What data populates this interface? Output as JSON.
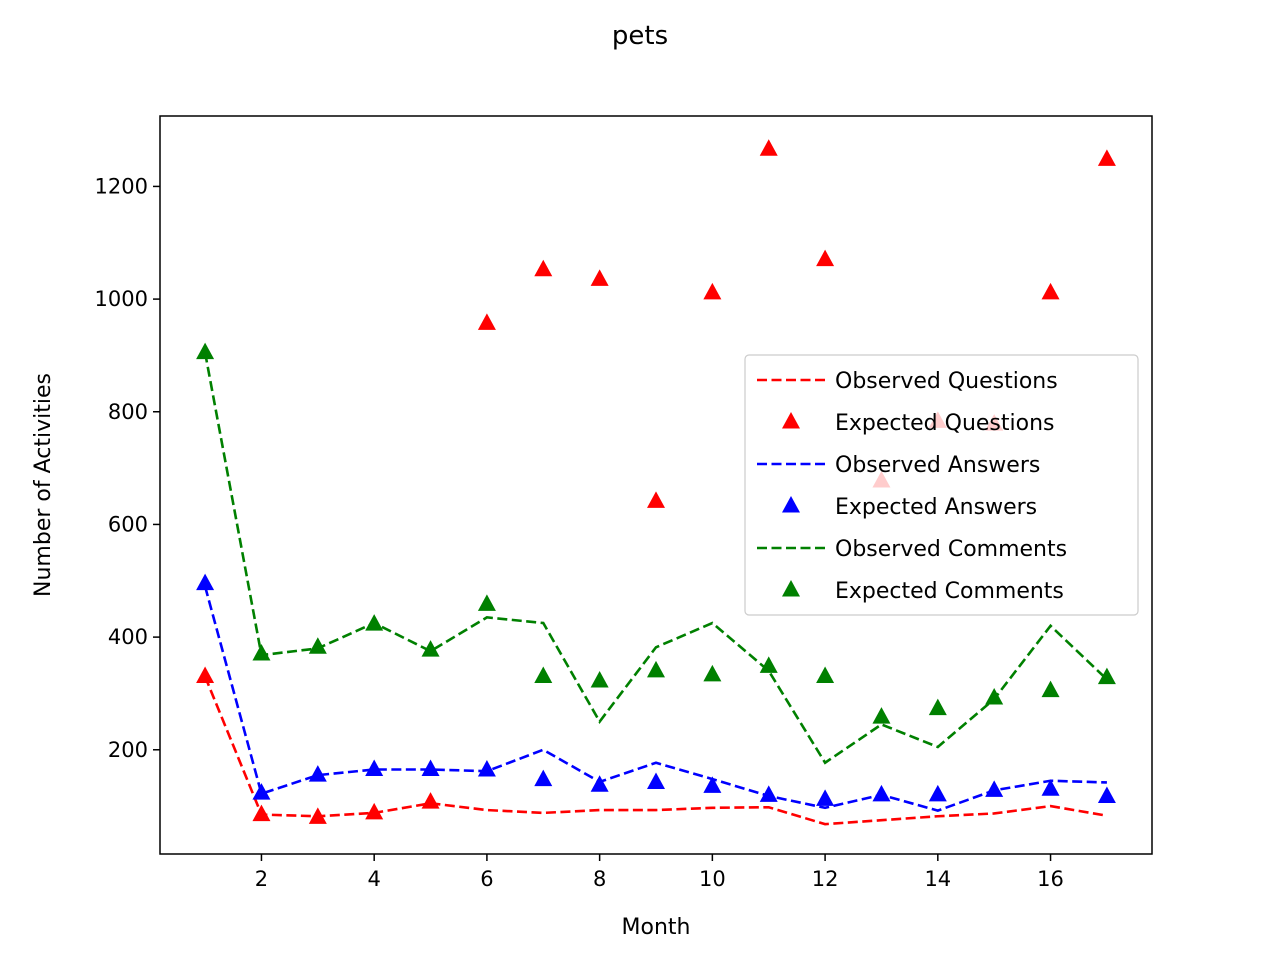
{
  "chart_data": {
    "type": "line",
    "title": "pets",
    "xlabel": "Month",
    "ylabel": "Number of Activities",
    "xlim": [
      0.2,
      17.8
    ],
    "ylim": [
      15,
      1325
    ],
    "xticks": [
      2,
      4,
      6,
      8,
      10,
      12,
      14,
      16
    ],
    "yticks": [
      200,
      400,
      600,
      800,
      1000,
      1200
    ],
    "grid": false,
    "legend_position": "center-right",
    "x": [
      1,
      2,
      3,
      4,
      5,
      6,
      7,
      8,
      9,
      10,
      11,
      12,
      13,
      14,
      15,
      16,
      17
    ],
    "series": [
      {
        "name": "Observed Questions",
        "style": "dashed-line",
        "color": "#ff0000",
        "values": [
          330,
          85,
          82,
          88,
          105,
          93,
          88,
          93,
          93,
          97,
          98,
          68,
          75,
          82,
          87,
          100,
          83
        ]
      },
      {
        "name": "Expected Questions",
        "style": "triangle-marker",
        "color": "#ff0000",
        "values": [
          330,
          85,
          80,
          88,
          107,
          957,
          1052,
          1035,
          641,
          1011,
          1266,
          1070,
          677,
          783,
          778,
          1011,
          1248
        ]
      },
      {
        "name": "Observed Answers",
        "style": "dashed-line",
        "color": "#0000ff",
        "values": [
          490,
          122,
          155,
          165,
          165,
          162,
          200,
          143,
          177,
          148,
          118,
          97,
          120,
          92,
          128,
          145,
          142
        ]
      },
      {
        "name": "Expected Answers",
        "style": "triangle-marker",
        "color": "#0000ff",
        "values": [
          495,
          123,
          155,
          165,
          165,
          164,
          147,
          137,
          142,
          135,
          119,
          112,
          120,
          120,
          128,
          130,
          117
        ]
      },
      {
        "name": "Observed Comments",
        "style": "dashed-line",
        "color": "#008000",
        "values": [
          905,
          368,
          380,
          425,
          375,
          435,
          425,
          250,
          382,
          425,
          340,
          177,
          245,
          205,
          290,
          420,
          325
        ]
      },
      {
        "name": "Expected Comments",
        "style": "triangle-marker",
        "color": "#008000",
        "values": [
          905,
          370,
          382,
          423,
          377,
          458,
          330,
          322,
          340,
          333,
          348,
          330,
          258,
          273,
          292,
          305,
          328
        ]
      }
    ]
  }
}
